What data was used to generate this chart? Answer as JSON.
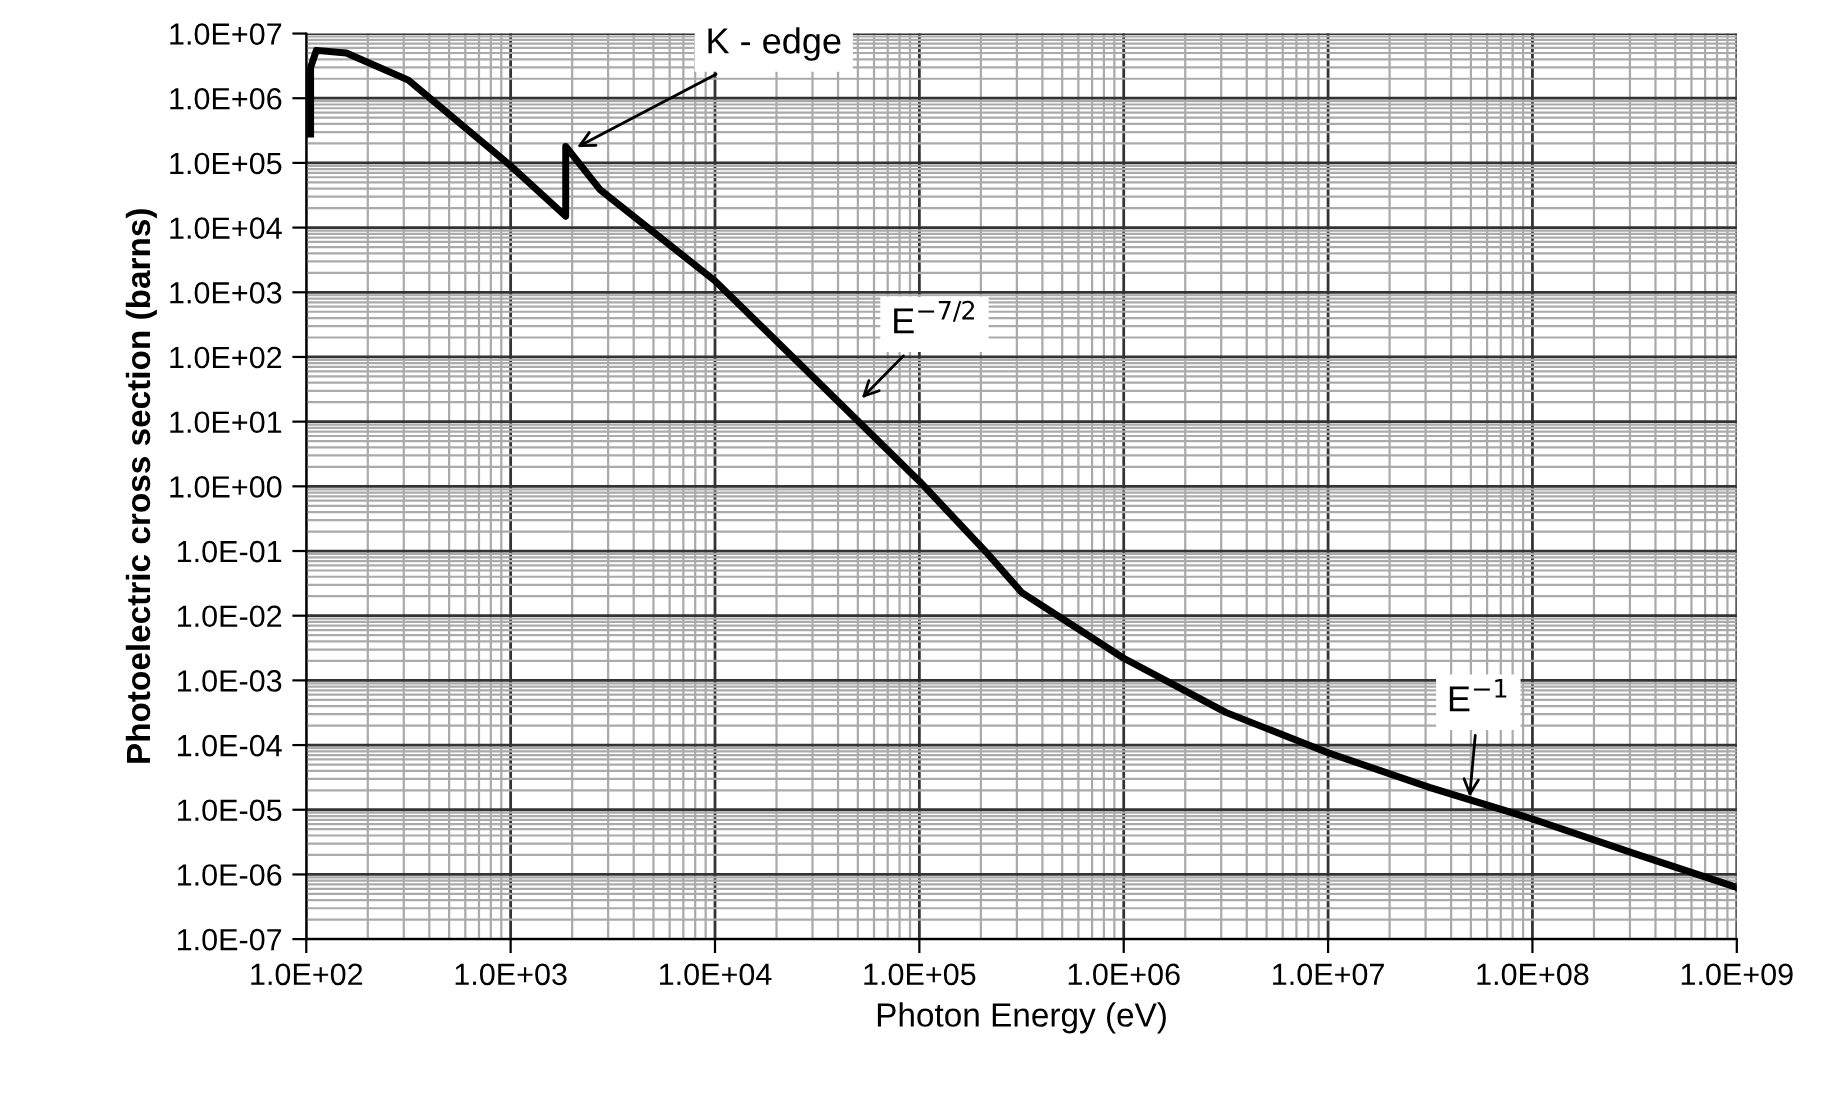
{
  "chart_data": {
    "type": "line",
    "xlabel": "Photon Energy (eV)",
    "ylabel": "Photoelectric cross section (barns)",
    "log": "xy",
    "grid": true,
    "marker": "none",
    "line_style": "solid",
    "series": [
      {
        "color": "#000000",
        "x": [
          105,
          105,
          112,
          157,
          316,
          1000,
          1860,
          1860,
          2750,
          10000,
          100000,
          210000,
          316000,
          1000000,
          3160000,
          10000000,
          31600000,
          100000000,
          316000000,
          1000000000
        ],
        "values": [
          280000,
          3000000,
          5500000,
          5000000,
          1900000,
          90000,
          15000,
          180000,
          38000,
          1500,
          1.2,
          0.1,
          0.023,
          0.0022,
          0.00032,
          7.6e-05,
          2.2e-05,
          7.2e-06,
          2.1e-06,
          6.3e-07
        ]
      }
    ],
    "xlim": [
      100,
      1000000000
    ],
    "xticks": [
      {
        "value": 100,
        "label": "1.0E+02"
      },
      {
        "value": 1000,
        "label": "1.0E+03"
      },
      {
        "value": 10000,
        "label": "1.0E+04"
      },
      {
        "value": 100000,
        "label": "1.0E+05"
      },
      {
        "value": 1000000,
        "label": "1.0E+06"
      },
      {
        "value": 10000000,
        "label": "1.0E+07"
      },
      {
        "value": 100000000,
        "label": "1.0E+08"
      },
      {
        "value": 1000000000,
        "label": "1.0E+09"
      }
    ],
    "ylim": [
      1e-07,
      10000000
    ],
    "yticks": [
      {
        "value": 1e-07,
        "label": "1.0E-07"
      },
      {
        "value": 1e-06,
        "label": "1.0E-06"
      },
      {
        "value": 1e-05,
        "label": "1.0E-05"
      },
      {
        "value": 0.0001,
        "label": "1.0E-04"
      },
      {
        "value": 0.001,
        "label": "1.0E-03"
      },
      {
        "value": 0.01,
        "label": "1.0E-02"
      },
      {
        "value": 0.1,
        "label": "1.0E-01"
      },
      {
        "value": 1,
        "label": "1.0E+00"
      },
      {
        "value": 10,
        "label": "1.0E+01"
      },
      {
        "value": 100,
        "label": "1.0E+02"
      },
      {
        "value": 1000,
        "label": "1.0E+03"
      },
      {
        "value": 10000,
        "label": "1.0E+04"
      },
      {
        "value": 100000,
        "label": "1.0E+05"
      },
      {
        "value": 1000000,
        "label": "1.0E+06"
      },
      {
        "value": 10000000,
        "label": "1.0E+07"
      }
    ],
    "annotations": [
      {
        "text": "K - edge",
        "x": 2000,
        "y": 160000
      },
      {
        "text": "E$^{−7/2}$",
        "x": 50000,
        "y": 20
      },
      {
        "text": "E$^{−1}$",
        "x": 49000000,
        "y": 1.3e-05
      }
    ]
  }
}
